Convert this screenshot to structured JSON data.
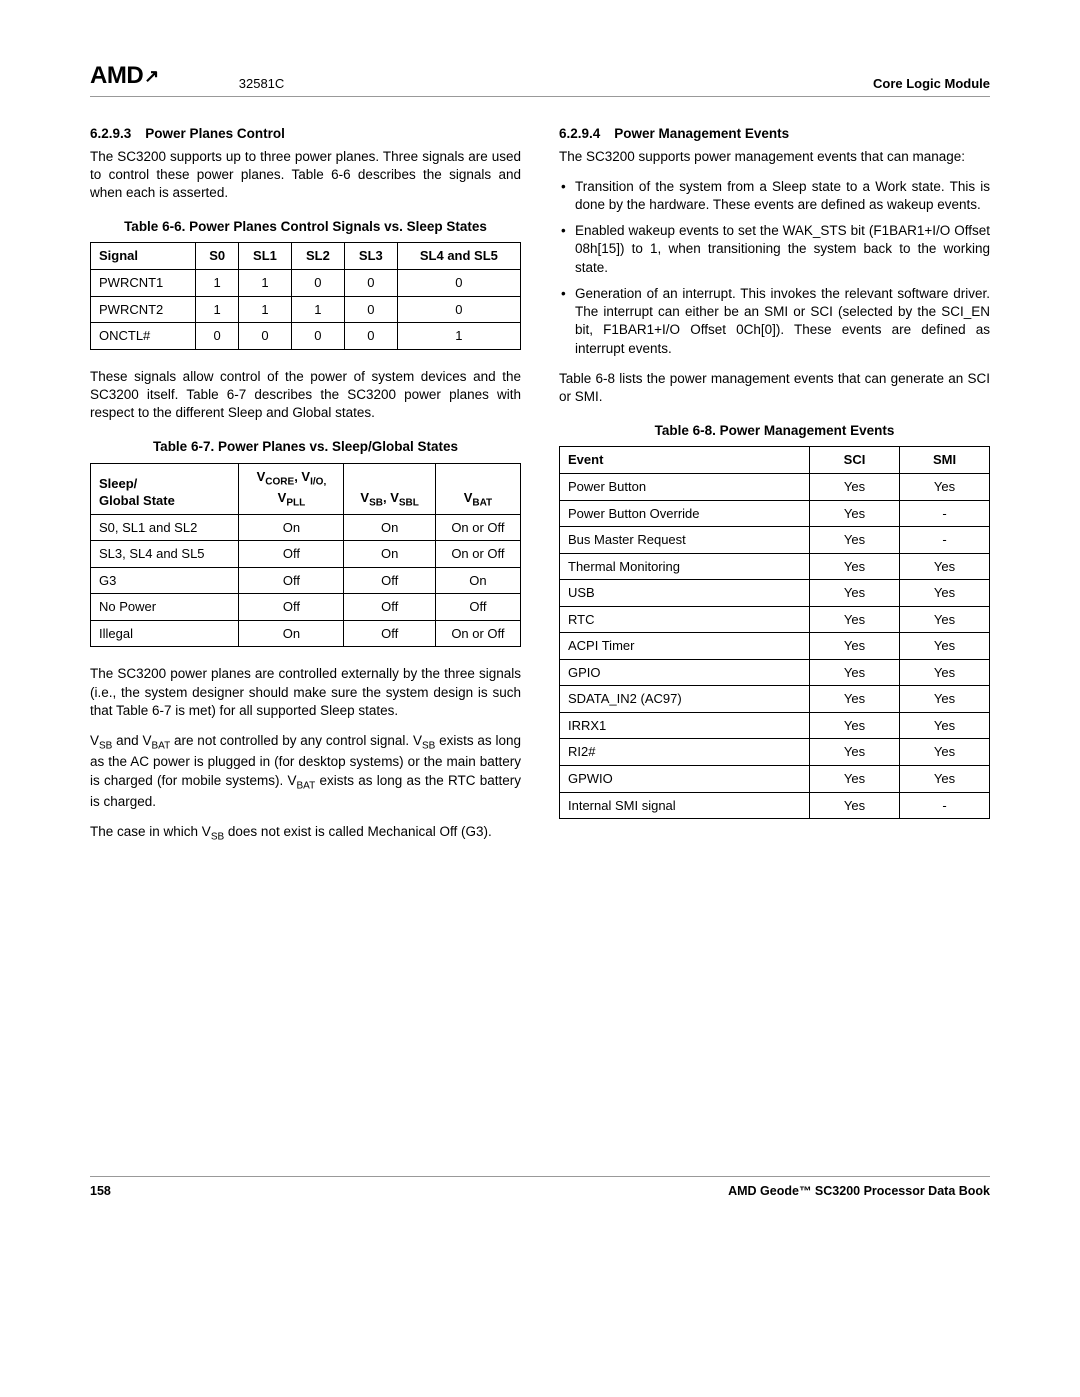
{
  "header": {
    "logo_text": "AMD",
    "doc_id": "32581C",
    "module": "Core Logic Module"
  },
  "left": {
    "sec1_num": "6.2.9.3",
    "sec1_title": "Power Planes Control",
    "sec1_p1": "The SC3200 supports up to three power planes. Three signals are used to control these power planes. Table 6-6 describes the signals and when each is asserted.",
    "table6_6_caption": "Table 6-6.  Power Planes Control Signals vs. Sleep States",
    "table6_6": {
      "headers": [
        "Signal",
        "S0",
        "SL1",
        "SL2",
        "SL3",
        "SL4 and SL5"
      ],
      "rows": [
        [
          "PWRCNT1",
          "1",
          "1",
          "0",
          "0",
          "0"
        ],
        [
          "PWRCNT2",
          "1",
          "1",
          "1",
          "0",
          "0"
        ],
        [
          "ONCTL#",
          "0",
          "0",
          "0",
          "0",
          "1"
        ]
      ]
    },
    "sec1_p2": "These signals allow control of the power of system devices and the SC3200 itself. Table 6-7 describes the SC3200 power planes with respect to the different Sleep and Global states.",
    "table6_7_caption": "Table 6-7.  Power Planes vs. Sleep/Global States",
    "table6_7": {
      "rows": [
        [
          "S0, SL1 and SL2",
          "On",
          "On",
          "On or Off"
        ],
        [
          "SL3, SL4 and SL5",
          "Off",
          "On",
          "On or Off"
        ],
        [
          "G3",
          "Off",
          "Off",
          "On"
        ],
        [
          "No Power",
          "Off",
          "Off",
          "Off"
        ],
        [
          "Illegal",
          "On",
          "Off",
          "On or Off"
        ]
      ]
    },
    "sec1_p3": "The SC3200 power planes are controlled externally by the three signals (i.e., the system designer should make sure the system design is such that Table 6-7 is met) for all supported Sleep states.",
    "sec1_p5_suffix": " does not exist is called Mechanical Off (G3)."
  },
  "right": {
    "sec2_num": "6.2.9.4",
    "sec2_title": "Power Management Events",
    "sec2_p1": "The SC3200 supports power management events that can manage:",
    "bullets": [
      "Transition of the system from a Sleep state to a Work state. This is done by the hardware. These events are defined as wakeup events.",
      "Enabled wakeup events to set the WAK_STS bit (F1BAR1+I/O Offset 08h[15]) to 1, when transitioning the system back to the working state.",
      "Generation of an interrupt. This invokes the relevant software driver. The interrupt can either be an SMI or SCI (selected by the SCI_EN bit, F1BAR1+I/O Offset 0Ch[0]). These events are defined as interrupt events."
    ],
    "sec2_p2": "Table 6-8 lists the power management events that can generate an SCI or SMI.",
    "table6_8_caption": "Table 6-8.  Power Management Events",
    "table6_8": {
      "headers": [
        "Event",
        "SCI",
        "SMI"
      ],
      "rows": [
        [
          "Power Button",
          "Yes",
          "Yes"
        ],
        [
          "Power Button Override",
          "Yes",
          "-"
        ],
        [
          "Bus Master Request",
          "Yes",
          "-"
        ],
        [
          "Thermal Monitoring",
          "Yes",
          "Yes"
        ],
        [
          "USB",
          "Yes",
          "Yes"
        ],
        [
          "RTC",
          "Yes",
          "Yes"
        ],
        [
          "ACPI Timer",
          "Yes",
          "Yes"
        ],
        [
          "GPIO",
          "Yes",
          "Yes"
        ],
        [
          "SDATA_IN2 (AC97)",
          "Yes",
          "Yes"
        ],
        [
          "IRRX1",
          "Yes",
          "Yes"
        ],
        [
          "RI2#",
          "Yes",
          "Yes"
        ],
        [
          "GPWIO",
          "Yes",
          "Yes"
        ],
        [
          "Internal SMI signal",
          "Yes",
          "-"
        ]
      ]
    }
  },
  "footer": {
    "page_num": "158",
    "book": "AMD Geode™ SC3200 Processor Data Book"
  }
}
